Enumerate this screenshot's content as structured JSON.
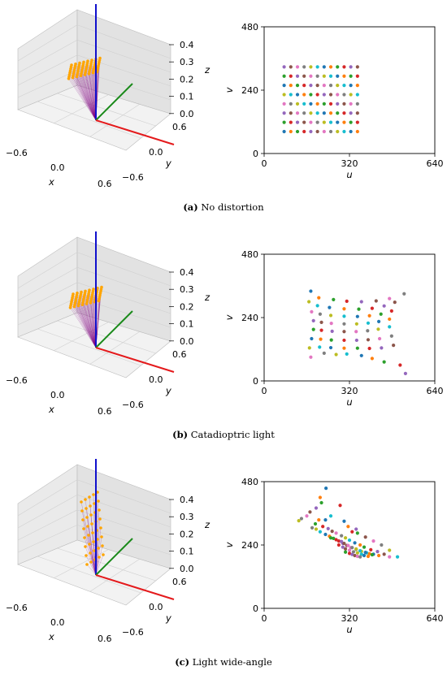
{
  "figure": {
    "panels": [
      {
        "letter": "(a)",
        "caption": "No distortion"
      },
      {
        "letter": "(b)",
        "caption": "Catadioptric light"
      },
      {
        "letter": "(c)",
        "caption": "Light wide-angle"
      }
    ]
  },
  "chart_data": [
    {
      "type": "scatter",
      "panel": "a",
      "title": "",
      "xlabel": "u",
      "ylabel": "v",
      "xlim": [
        0,
        640
      ],
      "ylim": [
        0,
        480
      ],
      "xticks": [
        "0",
        "320",
        "640"
      ],
      "yticks": [
        "0",
        "240",
        "480"
      ],
      "grid": false,
      "points": [
        [
          75,
          83
        ],
        [
          100,
          83
        ],
        [
          125,
          83
        ],
        [
          150,
          83
        ],
        [
          175,
          83
        ],
        [
          200,
          83
        ],
        [
          225,
          83
        ],
        [
          250,
          83
        ],
        [
          275,
          83
        ],
        [
          300,
          83
        ],
        [
          325,
          83
        ],
        [
          350,
          83
        ],
        [
          75,
          118
        ],
        [
          100,
          118
        ],
        [
          125,
          118
        ],
        [
          150,
          118
        ],
        [
          175,
          118
        ],
        [
          200,
          118
        ],
        [
          225,
          118
        ],
        [
          250,
          118
        ],
        [
          275,
          118
        ],
        [
          300,
          118
        ],
        [
          325,
          118
        ],
        [
          350,
          118
        ],
        [
          75,
          153
        ],
        [
          100,
          153
        ],
        [
          125,
          153
        ],
        [
          150,
          153
        ],
        [
          175,
          153
        ],
        [
          200,
          153
        ],
        [
          225,
          153
        ],
        [
          250,
          153
        ],
        [
          275,
          153
        ],
        [
          300,
          153
        ],
        [
          325,
          153
        ],
        [
          350,
          153
        ],
        [
          75,
          188
        ],
        [
          100,
          188
        ],
        [
          125,
          188
        ],
        [
          150,
          188
        ],
        [
          175,
          188
        ],
        [
          200,
          188
        ],
        [
          225,
          188
        ],
        [
          250,
          188
        ],
        [
          275,
          188
        ],
        [
          300,
          188
        ],
        [
          325,
          188
        ],
        [
          350,
          188
        ],
        [
          75,
          223
        ],
        [
          100,
          223
        ],
        [
          125,
          223
        ],
        [
          150,
          223
        ],
        [
          175,
          223
        ],
        [
          200,
          223
        ],
        [
          225,
          223
        ],
        [
          250,
          223
        ],
        [
          275,
          223
        ],
        [
          300,
          223
        ],
        [
          325,
          223
        ],
        [
          350,
          223
        ],
        [
          75,
          258
        ],
        [
          100,
          258
        ],
        [
          125,
          258
        ],
        [
          150,
          258
        ],
        [
          175,
          258
        ],
        [
          200,
          258
        ],
        [
          225,
          258
        ],
        [
          250,
          258
        ],
        [
          275,
          258
        ],
        [
          300,
          258
        ],
        [
          325,
          258
        ],
        [
          350,
          258
        ],
        [
          75,
          293
        ],
        [
          100,
          293
        ],
        [
          125,
          293
        ],
        [
          150,
          293
        ],
        [
          175,
          293
        ],
        [
          200,
          293
        ],
        [
          225,
          293
        ],
        [
          250,
          293
        ],
        [
          275,
          293
        ],
        [
          300,
          293
        ],
        [
          325,
          293
        ],
        [
          350,
          293
        ],
        [
          75,
          328
        ],
        [
          100,
          328
        ],
        [
          125,
          328
        ],
        [
          150,
          328
        ],
        [
          175,
          328
        ],
        [
          200,
          328
        ],
        [
          225,
          328
        ],
        [
          250,
          328
        ],
        [
          275,
          328
        ],
        [
          300,
          328
        ],
        [
          325,
          328
        ],
        [
          350,
          328
        ]
      ]
    },
    {
      "type": "scatter",
      "panel": "b",
      "title": "",
      "xlabel": "u",
      "ylabel": "v",
      "xlim": [
        0,
        640
      ],
      "ylim": [
        0,
        480
      ],
      "xticks": [
        "0",
        "320",
        "640"
      ],
      "yticks": [
        "0",
        "240",
        "480"
      ],
      "grid": false,
      "points": [
        [
          175,
          340
        ],
        [
          205,
          315
        ],
        [
          260,
          308
        ],
        [
          310,
          302
        ],
        [
          365,
          300
        ],
        [
          420,
          303
        ],
        [
          470,
          312
        ],
        [
          525,
          330
        ],
        [
          168,
          300
        ],
        [
          200,
          285
        ],
        [
          245,
          278
        ],
        [
          300,
          273
        ],
        [
          355,
          272
        ],
        [
          405,
          275
        ],
        [
          450,
          284
        ],
        [
          490,
          298
        ],
        [
          178,
          262
        ],
        [
          210,
          253
        ],
        [
          250,
          248
        ],
        [
          300,
          245
        ],
        [
          350,
          244
        ],
        [
          395,
          247
        ],
        [
          438,
          253
        ],
        [
          478,
          265
        ],
        [
          185,
          228
        ],
        [
          215,
          222
        ],
        [
          252,
          218
        ],
        [
          300,
          216
        ],
        [
          347,
          216
        ],
        [
          390,
          219
        ],
        [
          430,
          225
        ],
        [
          470,
          234
        ],
        [
          185,
          195
        ],
        [
          215,
          192
        ],
        [
          255,
          188
        ],
        [
          300,
          187
        ],
        [
          345,
          187
        ],
        [
          388,
          190
        ],
        [
          428,
          196
        ],
        [
          470,
          205
        ],
        [
          178,
          160
        ],
        [
          212,
          158
        ],
        [
          252,
          155
        ],
        [
          300,
          154
        ],
        [
          347,
          154
        ],
        [
          390,
          156
        ],
        [
          433,
          160
        ],
        [
          478,
          170
        ],
        [
          170,
          125
        ],
        [
          208,
          128
        ],
        [
          250,
          126
        ],
        [
          300,
          124
        ],
        [
          350,
          124
        ],
        [
          395,
          123
        ],
        [
          440,
          125
        ],
        [
          485,
          135
        ],
        [
          175,
          90
        ],
        [
          225,
          105
        ],
        [
          270,
          100
        ],
        [
          310,
          102
        ],
        [
          365,
          96
        ],
        [
          405,
          85
        ],
        [
          450,
          72
        ],
        [
          510,
          60
        ],
        [
          530,
          28
        ]
      ]
    },
    {
      "type": "scatter",
      "panel": "c",
      "title": "",
      "xlabel": "u",
      "ylabel": "v",
      "xlim": [
        0,
        640
      ],
      "ylim": [
        0,
        480
      ],
      "xticks": [
        "0",
        "320",
        "640"
      ],
      "yticks": [
        "0",
        "240",
        "480"
      ],
      "grid": false,
      "points": [
        [
          232,
          455
        ],
        [
          210,
          420
        ],
        [
          215,
          400
        ],
        [
          285,
          390
        ],
        [
          195,
          380
        ],
        [
          172,
          365
        ],
        [
          160,
          350
        ],
        [
          140,
          340
        ],
        [
          130,
          332
        ],
        [
          250,
          350
        ],
        [
          300,
          330
        ],
        [
          315,
          310
        ],
        [
          350,
          285
        ],
        [
          330,
          290
        ],
        [
          345,
          300
        ],
        [
          380,
          270
        ],
        [
          410,
          255
        ],
        [
          440,
          240
        ],
        [
          470,
          220
        ],
        [
          500,
          195
        ],
        [
          230,
          335
        ],
        [
          205,
          335
        ],
        [
          192,
          320
        ],
        [
          220,
          310
        ],
        [
          240,
          302
        ],
        [
          255,
          292
        ],
        [
          270,
          285
        ],
        [
          290,
          275
        ],
        [
          305,
          267
        ],
        [
          320,
          258
        ],
        [
          340,
          248
        ],
        [
          360,
          240
        ],
        [
          375,
          232
        ],
        [
          400,
          222
        ],
        [
          425,
          215
        ],
        [
          450,
          205
        ],
        [
          470,
          195
        ],
        [
          180,
          305
        ],
        [
          195,
          300
        ],
        [
          210,
          290
        ],
        [
          230,
          280
        ],
        [
          245,
          273
        ],
        [
          260,
          265
        ],
        [
          280,
          255
        ],
        [
          295,
          246
        ],
        [
          310,
          238
        ],
        [
          325,
          230
        ],
        [
          345,
          223
        ],
        [
          365,
          216
        ],
        [
          385,
          210
        ],
        [
          410,
          205
        ],
        [
          430,
          200
        ],
        [
          250,
          267
        ],
        [
          270,
          260
        ],
        [
          290,
          253
        ],
        [
          300,
          246
        ],
        [
          315,
          238
        ],
        [
          330,
          230
        ],
        [
          345,
          225
        ],
        [
          360,
          218
        ],
        [
          380,
          212
        ],
        [
          395,
          207
        ],
        [
          405,
          203
        ],
        [
          280,
          240
        ],
        [
          295,
          232
        ],
        [
          305,
          225
        ],
        [
          320,
          220
        ],
        [
          335,
          214
        ],
        [
          350,
          210
        ],
        [
          365,
          205
        ],
        [
          375,
          200
        ],
        [
          390,
          197
        ],
        [
          305,
          213
        ],
        [
          320,
          208
        ],
        [
          330,
          204
        ],
        [
          340,
          200
        ],
        [
          350,
          197
        ],
        [
          360,
          195
        ]
      ]
    }
  ],
  "axes3d": {
    "xticks": [
      "−0.6",
      "0.0",
      "0.6"
    ],
    "yticks": [
      "0.6",
      "0.0",
      "−0.6"
    ],
    "zticks": [
      "0.4",
      "0.3",
      "0.2",
      "0.1",
      "0.0"
    ],
    "xlabel": "x",
    "ylabel": "y",
    "zlabel": "z",
    "colors": {
      "x_axis": "#e41a1c",
      "y_axis": "#1a8a1a",
      "z_axis": "#1010cc",
      "rays": "#800080",
      "points": "#ffa500"
    }
  },
  "colors": [
    "#1f77b4",
    "#ff7f0e",
    "#2ca02c",
    "#d62728",
    "#9467bd",
    "#8c564b",
    "#e377c2",
    "#7f7f7f",
    "#bcbd22",
    "#17becf"
  ]
}
